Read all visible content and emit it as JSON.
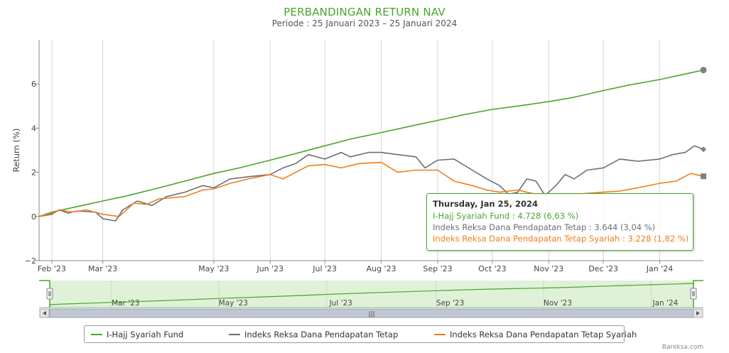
{
  "title": "PERBANDINGAN RETURN NAV",
  "subtitle": "Periode : 25 Januari 2023 – 25 Januari 2024",
  "credit": "Bareksa.com",
  "colors": {
    "green": "#4aa52e",
    "gray": "#6d6d77",
    "orange": "#f07e1a",
    "nav_fill": "#dff2d8"
  },
  "tooltip": {
    "header": "Thursday, Jan 25, 2024",
    "rows": [
      "I-Hajj Syariah Fund : 4.728 (6,63 %)",
      "Indeks Reksa Dana Pendapatan Tetap : 3.644 (3,04 %)",
      "Indeks Reksa Dana Pendapatan Tetap Syariah : 3.228 (1,82 %)"
    ]
  },
  "navigator": {
    "labels": [
      "Mar '23",
      "May '23",
      "Jul '23",
      "Sep '23",
      "Nov '23",
      "Jan '24"
    ],
    "scrollbar_handle": "|||"
  },
  "chart_data": {
    "type": "line",
    "ylabel": "Return (%)",
    "y_ticks": [
      -2,
      0,
      2,
      4,
      6
    ],
    "ylim": [
      -2,
      8
    ],
    "xlim": [
      "2023-01-25",
      "2024-01-25"
    ],
    "x_ticks": [
      {
        "label": "Feb '23",
        "date": "2023-02-01"
      },
      {
        "label": "Mar '23",
        "date": "2023-03-01"
      },
      {
        "label": "May '23",
        "date": "2023-05-01"
      },
      {
        "label": "Jun '23",
        "date": "2023-06-01"
      },
      {
        "label": "Jul '23",
        "date": "2023-07-01"
      },
      {
        "label": "Aug '23",
        "date": "2023-08-01"
      },
      {
        "label": "Sep '23",
        "date": "2023-09-01"
      },
      {
        "label": "Oct '23",
        "date": "2023-10-01"
      },
      {
        "label": "Nov '23",
        "date": "2023-11-01"
      },
      {
        "label": "Dec '23",
        "date": "2023-12-01"
      },
      {
        "label": "Jan '24",
        "date": "2024-01-01"
      }
    ],
    "grid": "vertical",
    "legend": "bottom",
    "series": [
      {
        "name": "I-Hajj Syariah Fund",
        "color": "#4aa52e",
        "marker": "circle",
        "points": [
          [
            "2023-01-25",
            0.0
          ],
          [
            "2023-02-01",
            0.2
          ],
          [
            "2023-02-15",
            0.45
          ],
          [
            "2023-03-01",
            0.7
          ],
          [
            "2023-03-15",
            0.95
          ],
          [
            "2023-04-01",
            1.3
          ],
          [
            "2023-04-15",
            1.6
          ],
          [
            "2023-05-01",
            1.95
          ],
          [
            "2023-05-15",
            2.2
          ],
          [
            "2023-06-01",
            2.55
          ],
          [
            "2023-06-15",
            2.85
          ],
          [
            "2023-07-01",
            3.2
          ],
          [
            "2023-07-15",
            3.5
          ],
          [
            "2023-08-01",
            3.8
          ],
          [
            "2023-08-15",
            4.05
          ],
          [
            "2023-09-01",
            4.35
          ],
          [
            "2023-09-15",
            4.6
          ],
          [
            "2023-10-01",
            4.85
          ],
          [
            "2023-10-15",
            5.0
          ],
          [
            "2023-11-01",
            5.2
          ],
          [
            "2023-11-15",
            5.4
          ],
          [
            "2023-12-01",
            5.7
          ],
          [
            "2023-12-15",
            5.95
          ],
          [
            "2024-01-01",
            6.2
          ],
          [
            "2024-01-15",
            6.45
          ],
          [
            "2024-01-25",
            6.63
          ]
        ]
      },
      {
        "name": "Indeks Reksa Dana Pendapatan Tetap",
        "color": "#6d6d77",
        "marker": "diamond",
        "points": [
          [
            "2023-01-25",
            0.0
          ],
          [
            "2023-02-01",
            0.1
          ],
          [
            "2023-02-05",
            0.3
          ],
          [
            "2023-02-10",
            0.15
          ],
          [
            "2023-02-15",
            0.25
          ],
          [
            "2023-02-25",
            0.2
          ],
          [
            "2023-03-01",
            -0.1
          ],
          [
            "2023-03-08",
            -0.2
          ],
          [
            "2023-03-12",
            0.3
          ],
          [
            "2023-03-20",
            0.7
          ],
          [
            "2023-03-28",
            0.5
          ],
          [
            "2023-04-05",
            0.9
          ],
          [
            "2023-04-15",
            1.1
          ],
          [
            "2023-04-25",
            1.4
          ],
          [
            "2023-05-01",
            1.3
          ],
          [
            "2023-05-10",
            1.7
          ],
          [
            "2023-05-20",
            1.8
          ],
          [
            "2023-06-01",
            1.9
          ],
          [
            "2023-06-08",
            2.2
          ],
          [
            "2023-06-15",
            2.4
          ],
          [
            "2023-06-22",
            2.8
          ],
          [
            "2023-07-01",
            2.6
          ],
          [
            "2023-07-10",
            2.9
          ],
          [
            "2023-07-15",
            2.7
          ],
          [
            "2023-07-25",
            2.9
          ],
          [
            "2023-08-01",
            2.9
          ],
          [
            "2023-08-10",
            2.8
          ],
          [
            "2023-08-20",
            2.7
          ],
          [
            "2023-08-25",
            2.2
          ],
          [
            "2023-09-01",
            2.55
          ],
          [
            "2023-09-10",
            2.6
          ],
          [
            "2023-09-20",
            2.1
          ],
          [
            "2023-09-28",
            1.7
          ],
          [
            "2023-10-05",
            1.4
          ],
          [
            "2023-10-10",
            1.0
          ],
          [
            "2023-10-15",
            1.1
          ],
          [
            "2023-10-20",
            1.7
          ],
          [
            "2023-10-25",
            1.6
          ],
          [
            "2023-10-30",
            0.95
          ],
          [
            "2023-11-05",
            1.4
          ],
          [
            "2023-11-10",
            1.9
          ],
          [
            "2023-11-15",
            1.7
          ],
          [
            "2023-11-22",
            2.1
          ],
          [
            "2023-12-01",
            2.2
          ],
          [
            "2023-12-10",
            2.6
          ],
          [
            "2023-12-20",
            2.5
          ],
          [
            "2024-01-01",
            2.6
          ],
          [
            "2024-01-08",
            2.8
          ],
          [
            "2024-01-15",
            2.9
          ],
          [
            "2024-01-20",
            3.2
          ],
          [
            "2024-01-25",
            3.04
          ]
        ]
      },
      {
        "name": "Indeks Reksa Dana Pendapatan Tetap Syariah",
        "color": "#f07e1a",
        "marker": "square",
        "points": [
          [
            "2023-01-25",
            0.0
          ],
          [
            "2023-02-01",
            0.15
          ],
          [
            "2023-02-05",
            0.3
          ],
          [
            "2023-02-12",
            0.2
          ],
          [
            "2023-02-20",
            0.3
          ],
          [
            "2023-03-01",
            0.1
          ],
          [
            "2023-03-10",
            0.0
          ],
          [
            "2023-03-18",
            0.6
          ],
          [
            "2023-03-25",
            0.55
          ],
          [
            "2023-04-01",
            0.8
          ],
          [
            "2023-04-15",
            0.9
          ],
          [
            "2023-04-25",
            1.2
          ],
          [
            "2023-05-01",
            1.25
          ],
          [
            "2023-05-10",
            1.5
          ],
          [
            "2023-05-20",
            1.7
          ],
          [
            "2023-06-01",
            1.9
          ],
          [
            "2023-06-08",
            1.7
          ],
          [
            "2023-06-15",
            2.0
          ],
          [
            "2023-06-22",
            2.3
          ],
          [
            "2023-07-01",
            2.35
          ],
          [
            "2023-07-10",
            2.2
          ],
          [
            "2023-07-20",
            2.4
          ],
          [
            "2023-08-01",
            2.45
          ],
          [
            "2023-08-10",
            2.0
          ],
          [
            "2023-08-20",
            2.1
          ],
          [
            "2023-09-01",
            2.1
          ],
          [
            "2023-09-10",
            1.6
          ],
          [
            "2023-09-20",
            1.4
          ],
          [
            "2023-09-28",
            1.2
          ],
          [
            "2023-10-05",
            1.1
          ],
          [
            "2023-10-15",
            1.2
          ],
          [
            "2023-10-25",
            1.0
          ],
          [
            "2023-11-01",
            1.0
          ],
          [
            "2023-11-15",
            1.0
          ],
          [
            "2023-12-01",
            1.1
          ],
          [
            "2023-12-10",
            1.15
          ],
          [
            "2023-12-20",
            1.3
          ],
          [
            "2024-01-01",
            1.5
          ],
          [
            "2024-01-10",
            1.6
          ],
          [
            "2024-01-18",
            1.95
          ],
          [
            "2024-01-25",
            1.82
          ]
        ]
      }
    ]
  }
}
